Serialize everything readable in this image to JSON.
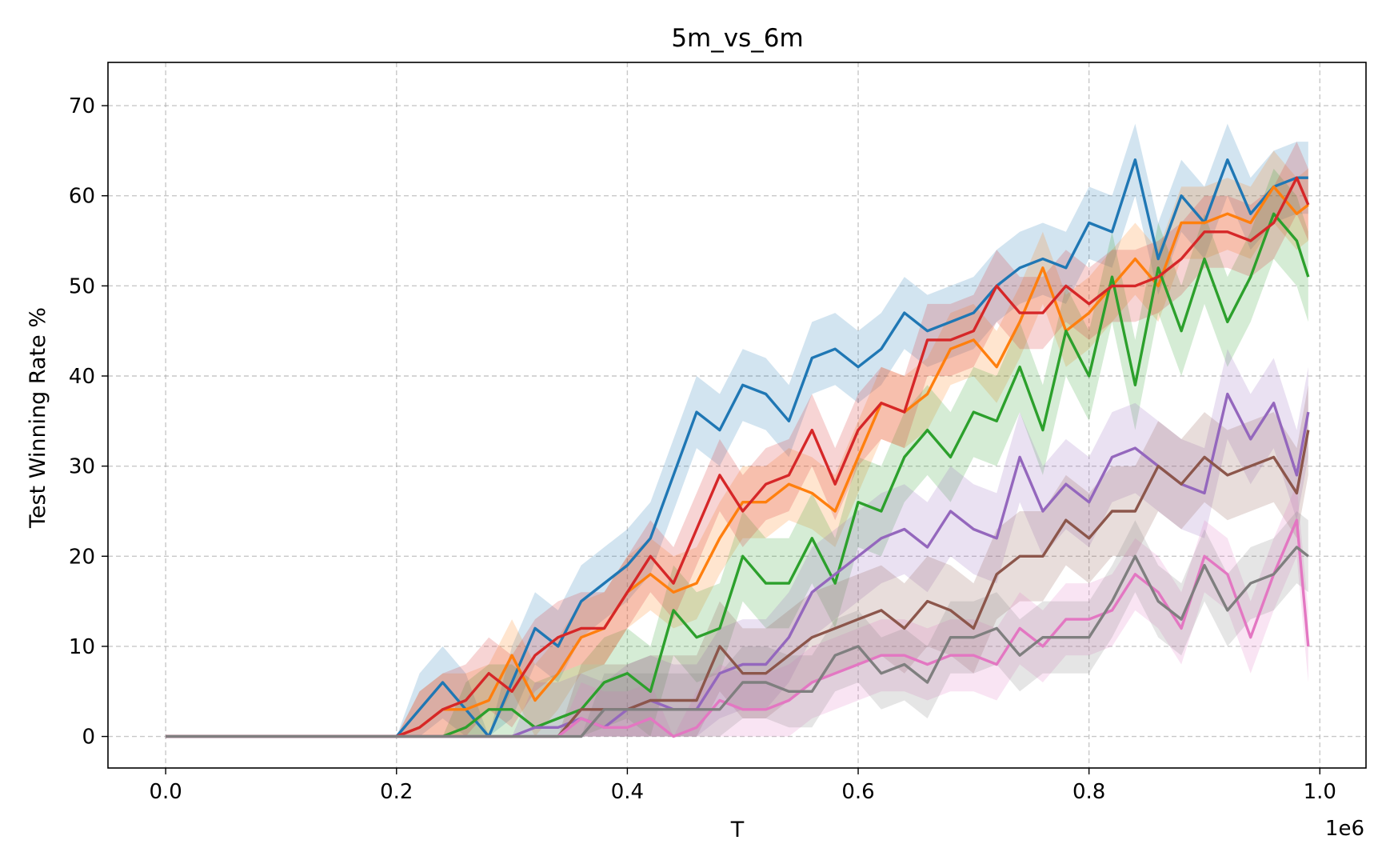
{
  "chart_data": {
    "type": "line",
    "title": "5m_vs_6m",
    "xlabel": "T",
    "ylabel": "Test Winning Rate %",
    "x_offset_label": "1e6",
    "xlim": [
      -0.05,
      1.04
    ],
    "ylim": [
      -3.5,
      74.8
    ],
    "x_ticks": [
      0.0,
      0.2,
      0.4,
      0.6,
      0.8,
      1.0
    ],
    "x_tick_labels": [
      "0.0",
      "0.2",
      "0.4",
      "0.6",
      "0.8",
      "1.0"
    ],
    "y_ticks": [
      0,
      10,
      20,
      30,
      40,
      50,
      60,
      70
    ],
    "y_tick_labels": [
      "0",
      "10",
      "20",
      "30",
      "40",
      "50",
      "60",
      "70"
    ],
    "grid": true,
    "grid_style": "dashed",
    "legend": "none",
    "x": [
      0.0,
      0.1,
      0.2,
      0.22,
      0.24,
      0.26,
      0.28,
      0.3,
      0.32,
      0.34,
      0.36,
      0.38,
      0.4,
      0.42,
      0.44,
      0.46,
      0.48,
      0.5,
      0.52,
      0.54,
      0.56,
      0.58,
      0.6,
      0.62,
      0.64,
      0.66,
      0.68,
      0.7,
      0.72,
      0.74,
      0.76,
      0.78,
      0.8,
      0.82,
      0.84,
      0.86,
      0.88,
      0.9,
      0.92,
      0.94,
      0.96,
      0.98,
      0.99
    ],
    "series": [
      {
        "color": "#1f77b4",
        "values": [
          0,
          0,
          0,
          3,
          6,
          3,
          0,
          6,
          12,
          10,
          15,
          17,
          19,
          22,
          29,
          36,
          34,
          39,
          38,
          35,
          42,
          43,
          41,
          43,
          47,
          45,
          46,
          47,
          50,
          52,
          53,
          52,
          57,
          56,
          64,
          53,
          60,
          57,
          64,
          58,
          61,
          62,
          62
        ],
        "band": 4
      },
      {
        "color": "#ff7f0e",
        "values": [
          0,
          0,
          0,
          1,
          3,
          3,
          4,
          9,
          4,
          7,
          11,
          12,
          16,
          18,
          16,
          17,
          22,
          26,
          26,
          28,
          27,
          25,
          31,
          37,
          36,
          38,
          43,
          44,
          41,
          46,
          52,
          45,
          47,
          50,
          53,
          50,
          57,
          57,
          58,
          57,
          61,
          58,
          59
        ],
        "band": 4
      },
      {
        "color": "#2ca02c",
        "values": [
          0,
          0,
          0,
          0,
          0,
          1,
          3,
          3,
          1,
          2,
          3,
          6,
          7,
          5,
          14,
          11,
          12,
          20,
          17,
          17,
          22,
          17,
          26,
          25,
          31,
          34,
          31,
          36,
          35,
          41,
          34,
          45,
          40,
          51,
          39,
          52,
          45,
          53,
          46,
          51,
          58,
          55,
          51
        ],
        "band": 5
      },
      {
        "color": "#d62728",
        "values": [
          0,
          0,
          0,
          1,
          3,
          4,
          7,
          5,
          9,
          11,
          12,
          12,
          16,
          20,
          17,
          23,
          29,
          25,
          28,
          29,
          34,
          28,
          34,
          37,
          36,
          44,
          44,
          45,
          50,
          47,
          47,
          50,
          48,
          50,
          50,
          51,
          53,
          56,
          56,
          55,
          57,
          62,
          59
        ],
        "band": 4
      },
      {
        "color": "#9467bd",
        "values": [
          0,
          0,
          0,
          0,
          0,
          0,
          0,
          0,
          1,
          1,
          2,
          1,
          3,
          4,
          3,
          3,
          7,
          8,
          8,
          11,
          16,
          18,
          20,
          22,
          23,
          21,
          25,
          23,
          22,
          31,
          25,
          28,
          26,
          31,
          32,
          30,
          28,
          27,
          38,
          33,
          37,
          29,
          36
        ],
        "band": 5
      },
      {
        "color": "#8c564b",
        "values": [
          0,
          0,
          0,
          0,
          0,
          0,
          0,
          0,
          0,
          0,
          3,
          3,
          3,
          4,
          4,
          4,
          10,
          7,
          7,
          9,
          11,
          12,
          13,
          14,
          12,
          15,
          14,
          12,
          18,
          20,
          20,
          24,
          22,
          25,
          25,
          30,
          28,
          31,
          29,
          30,
          31,
          27,
          34
        ],
        "band": 5
      },
      {
        "color": "#e377c2",
        "values": [
          0,
          0,
          0,
          0,
          0,
          0,
          0,
          0,
          0,
          0,
          2,
          1,
          1,
          2,
          0,
          1,
          4,
          3,
          3,
          4,
          6,
          7,
          8,
          9,
          9,
          8,
          9,
          9,
          8,
          12,
          10,
          13,
          13,
          14,
          18,
          16,
          12,
          20,
          18,
          11,
          18,
          24,
          10
        ],
        "band": 4
      },
      {
        "color": "#7f7f7f",
        "values": [
          0,
          0,
          0,
          0,
          0,
          0,
          0,
          0,
          0,
          0,
          0,
          3,
          3,
          3,
          3,
          3,
          3,
          6,
          6,
          5,
          5,
          9,
          10,
          7,
          8,
          6,
          11,
          11,
          12,
          9,
          11,
          11,
          11,
          15,
          20,
          15,
          13,
          19,
          14,
          17,
          18,
          21,
          20
        ],
        "band": 4
      }
    ]
  }
}
